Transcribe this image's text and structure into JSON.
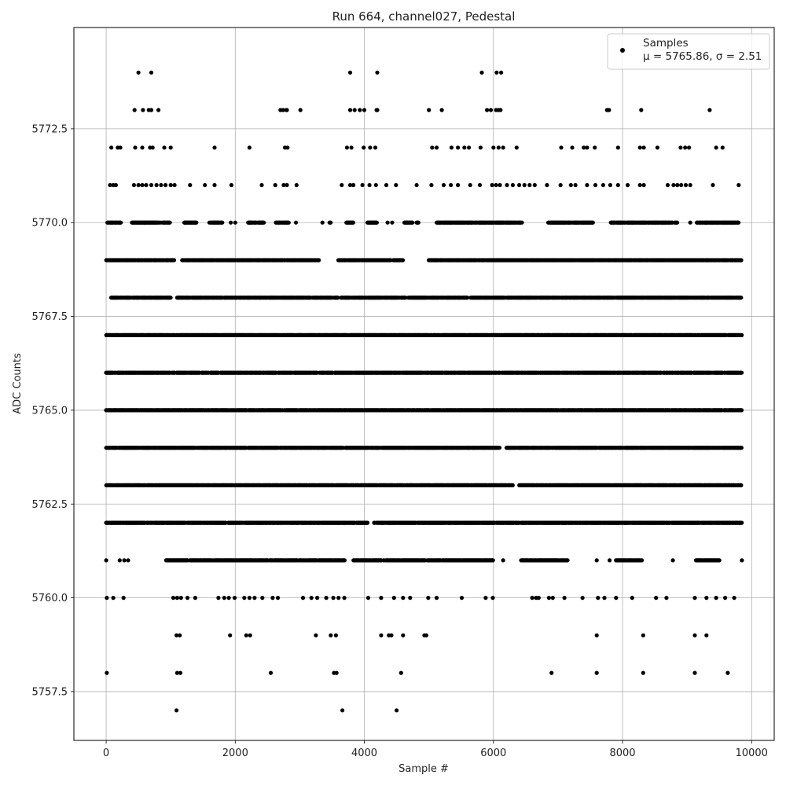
{
  "chart_data": {
    "type": "scatter",
    "title": "Run 664, channel027, Pedestal",
    "xlabel": "Sample #",
    "ylabel": "ADC Counts",
    "xlim": [
      -500,
      10350
    ],
    "ylim": [
      5756.2,
      5775.2
    ],
    "x_ticks": [
      0,
      2000,
      4000,
      6000,
      8000,
      10000
    ],
    "y_ticks": [
      5757.5,
      5760.0,
      5762.5,
      5765.0,
      5767.5,
      5770.0,
      5772.5
    ],
    "x_tick_labels": [
      "0",
      "2000",
      "4000",
      "6000",
      "8000",
      "10000"
    ],
    "y_tick_labels": [
      "5757.5",
      "5760.0",
      "5762.5",
      "5765.0",
      "5767.5",
      "5770.0",
      "5772.5"
    ],
    "grid": true,
    "legend_position": "top-right",
    "marker_color": "#000000",
    "series": [
      {
        "name": "Samples",
        "stats": "μ = 5765.86, σ = 2.51",
        "mean": 5765.86,
        "std": 2.51,
        "n_samples": 9850,
        "x_range": [
          0,
          9849
        ],
        "levels": [
          {
            "y": 5774,
            "x": [
              500,
              700,
              3780,
              4200,
              5820,
              6050,
              6120
            ]
          },
          {
            "y": 5773,
            "x": [
              440,
              570,
              660,
              700,
              810,
              2700,
              2740,
              2790,
              2800,
              3010,
              3780,
              3850,
              3930,
              4000,
              4190,
              4200,
              5000,
              5200,
              5900,
              5960,
              6040,
              6080,
              6110,
              7760,
              7790,
              8290,
              9350
            ]
          },
          {
            "y": 5772,
            "x": [
              80,
              180,
              220,
              450,
              560,
              680,
              720,
              900,
              1000,
              1680,
              2220,
              2770,
              2810,
              3730,
              3800,
              3990,
              4090,
              4170,
              5050,
              5120,
              5350,
              5450,
              5550,
              5620,
              5800,
              6000,
              6080,
              6150,
              6360,
              7050,
              7220,
              7400,
              7450,
              7570,
              7930,
              8270,
              8330,
              8540,
              8900,
              8970,
              9030,
              9450,
              9550
            ]
          },
          {
            "y": 5771,
            "x": [
              60,
              110,
              150,
              430,
              500,
              560,
              620,
              700,
              780,
              850,
              920,
              1000,
              1060,
              1300,
              1530,
              1680,
              1940,
              2410,
              2620,
              2750,
              2800,
              2950,
              3650,
              3780,
              3830,
              3970,
              4080,
              4180,
              4340,
              4490,
              4810,
              5040,
              5230,
              5340,
              5450,
              5640,
              5790,
              5980,
              6040,
              6100,
              6210,
              6300,
              6400,
              6480,
              6560,
              6640,
              6830,
              7040,
              7200,
              7270,
              7450,
              7580,
              7700,
              7810,
              7930,
              8080,
              8270,
              8330,
              8700,
              8790,
              8850,
              8910,
              8980,
              9050,
              9400,
              9800
            ]
          },
          {
            "y": 5770,
            "x_ranges": [
              [
                20,
                230
              ],
              [
                400,
                1000
              ],
              [
                1200,
                1400
              ],
              [
                1600,
                1800
              ],
              [
                2200,
                2450
              ],
              [
                2620,
                2830
              ],
              [
                3460,
                3480
              ],
              [
                3720,
                3830
              ],
              [
                4050,
                4200
              ],
              [
                4620,
                4750
              ],
              [
                4810,
                4840
              ],
              [
                5120,
                6450
              ],
              [
                6850,
                7550
              ],
              [
                7820,
                8850
              ],
              [
                9150,
                9800
              ]
            ],
            "x": [
              600,
              1220,
              1930,
              2000,
              2220,
              2940,
              3350,
              4360,
              4430,
              9050,
              9300
            ]
          },
          {
            "y": 5769,
            "x_ranges": [
              [
                0,
                1060
              ],
              [
                1180,
                3300
              ],
              [
                3600,
                4410
              ],
              [
                4450,
                4610
              ],
              [
                5000,
                6150
              ],
              [
                6150,
                9850
              ]
            ]
          },
          {
            "y": 5768,
            "x_ranges": [
              [
                80,
                1000
              ],
              [
                1100,
                3600
              ],
              [
                3640,
                4640
              ],
              [
                4680,
                5600
              ],
              [
                5650,
                9850
              ]
            ]
          },
          {
            "y": 5767,
            "x_ranges": [
              [
                0,
                9850
              ]
            ]
          },
          {
            "y": 5766,
            "x_ranges": [
              [
                0,
                9850
              ]
            ]
          },
          {
            "y": 5765,
            "x_ranges": [
              [
                0,
                9850
              ]
            ]
          },
          {
            "y": 5764,
            "x_ranges": [
              [
                0,
                6100
              ],
              [
                6200,
                9850
              ]
            ]
          },
          {
            "y": 5763,
            "x_ranges": [
              [
                0,
                6300
              ],
              [
                6400,
                9850
              ]
            ]
          },
          {
            "y": 5762,
            "x_ranges": [
              [
                0,
                4050
              ],
              [
                4150,
                9850
              ]
            ]
          },
          {
            "y": 5761,
            "x_ranges": [
              [
                930,
                3700
              ],
              [
                3830,
                4270
              ],
              [
                4300,
                6000
              ],
              [
                6430,
                7150
              ],
              [
                7900,
                8300
              ],
              [
                9140,
                9500
              ]
            ],
            "x": [
              0,
              210,
              280,
              340,
              5900,
              6150,
              7600,
              7800,
              8780,
              9850
            ]
          },
          {
            "y": 5760,
            "x": [
              10,
              110,
              270,
              1040,
              1100,
              1160,
              1260,
              1380,
              1740,
              1830,
              1900,
              1990,
              2140,
              2220,
              2300,
              2420,
              2580,
              2660,
              3050,
              3180,
              3270,
              3410,
              3520,
              3600,
              3690,
              4060,
              4260,
              4460,
              4600,
              4710,
              4990,
              5120,
              5510,
              5880,
              5990,
              6600,
              6660,
              6700,
              6860,
              6920,
              7100,
              7380,
              7620,
              7720,
              7900,
              8150,
              8520,
              8680,
              9120,
              9300,
              9450,
              9590,
              9730
            ]
          },
          {
            "y": 5759,
            "x": [
              1090,
              1140,
              1920,
              2170,
              2230,
              3250,
              3480,
              3560,
              4260,
              4380,
              4420,
              4600,
              4930,
              4960,
              7600,
              8320,
              9120,
              9300
            ]
          },
          {
            "y": 5758,
            "x": [
              10,
              1100,
              1150,
              2550,
              3530,
              3570,
              4570,
              6900,
              7600,
              8320,
              9120,
              9630
            ]
          },
          {
            "y": 5757,
            "x": [
              1090,
              3660,
              4500
            ]
          }
        ]
      }
    ]
  }
}
